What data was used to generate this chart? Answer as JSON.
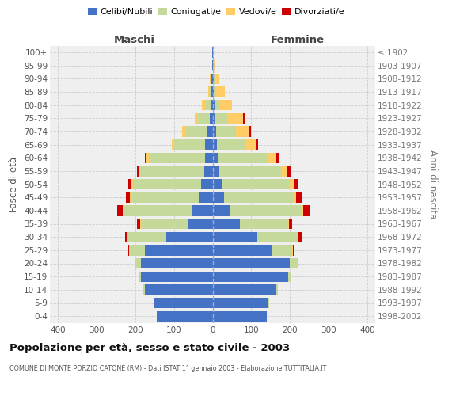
{
  "age_groups": [
    "0-4",
    "5-9",
    "10-14",
    "15-19",
    "20-24",
    "25-29",
    "30-34",
    "35-39",
    "40-44",
    "45-49",
    "50-54",
    "55-59",
    "60-64",
    "65-69",
    "70-74",
    "75-79",
    "80-84",
    "85-89",
    "90-94",
    "95-99",
    "100+"
  ],
  "birth_years": [
    "1998-2002",
    "1993-1997",
    "1988-1992",
    "1983-1987",
    "1978-1982",
    "1973-1977",
    "1968-1972",
    "1963-1967",
    "1958-1962",
    "1953-1957",
    "1948-1952",
    "1943-1947",
    "1938-1942",
    "1933-1937",
    "1928-1932",
    "1923-1927",
    "1918-1922",
    "1913-1917",
    "1908-1912",
    "1903-1907",
    "≤ 1902"
  ],
  "maschi": {
    "celibi": [
      145,
      150,
      175,
      185,
      185,
      175,
      120,
      65,
      55,
      35,
      30,
      22,
      20,
      20,
      15,
      8,
      5,
      4,
      3,
      2,
      2
    ],
    "coniugati": [
      0,
      2,
      3,
      5,
      15,
      40,
      100,
      120,
      175,
      175,
      175,
      165,
      145,
      80,
      55,
      30,
      15,
      5,
      3,
      0,
      0
    ],
    "vedovi": [
      0,
      0,
      0,
      0,
      0,
      1,
      1,
      1,
      2,
      3,
      5,
      3,
      5,
      5,
      8,
      8,
      8,
      3,
      2,
      0,
      0
    ],
    "divorziati": [
      0,
      0,
      0,
      0,
      1,
      2,
      5,
      10,
      15,
      10,
      8,
      5,
      5,
      0,
      0,
      0,
      0,
      0,
      0,
      0,
      0
    ]
  },
  "femmine": {
    "nubili": [
      140,
      145,
      165,
      195,
      200,
      155,
      115,
      70,
      45,
      30,
      25,
      18,
      15,
      12,
      10,
      8,
      5,
      4,
      3,
      2,
      2
    ],
    "coniugate": [
      0,
      2,
      3,
      8,
      20,
      50,
      105,
      125,
      185,
      180,
      175,
      160,
      130,
      70,
      50,
      30,
      15,
      5,
      2,
      0,
      0
    ],
    "vedove": [
      0,
      0,
      0,
      0,
      0,
      2,
      1,
      2,
      3,
      5,
      10,
      15,
      20,
      30,
      35,
      40,
      30,
      22,
      12,
      3,
      2
    ],
    "divorziate": [
      0,
      0,
      0,
      0,
      1,
      3,
      8,
      8,
      20,
      14,
      12,
      10,
      8,
      5,
      5,
      5,
      0,
      0,
      0,
      0,
      0
    ]
  },
  "colors": {
    "celibi_nubili": "#4472C4",
    "coniugati": "#C5D99A",
    "vedovi": "#FFCC66",
    "divorziati": "#CC0000"
  },
  "xlim": 420,
  "title": "Popolazione per età, sesso e stato civile - 2003",
  "subtitle": "COMUNE DI MONTE PORZIO CATONE (RM) - Dati ISTAT 1° gennaio 2003 - Elaborazione TUTTITALIA.IT",
  "xlabel_left": "Maschi",
  "xlabel_right": "Femmine",
  "ylabel_left": "Fasce di età",
  "ylabel_right": "Anni di nascita",
  "background_color": "#efefef",
  "grid_color": "#cccccc",
  "xticks": [
    -400,
    -300,
    -200,
    -100,
    0,
    100,
    200,
    300,
    400
  ]
}
